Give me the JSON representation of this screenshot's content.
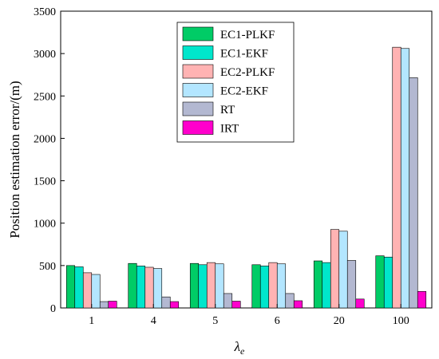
{
  "chart_data": {
    "type": "bar",
    "title": "",
    "xlabel": "λe",
    "xlabel_main": "λ",
    "xlabel_sub": "e",
    "ylabel": "Position estimation error/(m)",
    "categories": [
      "1",
      "4",
      "5",
      "6",
      "20",
      "100"
    ],
    "ylim": [
      0,
      3500
    ],
    "yticks": [
      0,
      500,
      1000,
      1500,
      2000,
      2500,
      3000,
      3500
    ],
    "grid": false,
    "legend_position": "top-left",
    "series": [
      {
        "name": "EC1-PLKF",
        "color": "#00cc66",
        "values": [
          500,
          525,
          525,
          510,
          555,
          615
        ]
      },
      {
        "name": "EC1-EKF",
        "color": "#00e6cc",
        "values": [
          485,
          495,
          510,
          495,
          535,
          600
        ]
      },
      {
        "name": "EC2-PLKF",
        "color": "#ffb3b3",
        "values": [
          415,
          480,
          535,
          535,
          925,
          3075
        ]
      },
      {
        "name": "EC2-EKF",
        "color": "#b3e6ff",
        "values": [
          395,
          465,
          520,
          520,
          905,
          3060
        ]
      },
      {
        "name": "RT",
        "color": "#b3b8d1",
        "values": [
          75,
          130,
          170,
          170,
          560,
          2715
        ]
      },
      {
        "name": "IRT",
        "color": "#ff00cc",
        "values": [
          80,
          75,
          80,
          85,
          105,
          195
        ]
      }
    ]
  }
}
